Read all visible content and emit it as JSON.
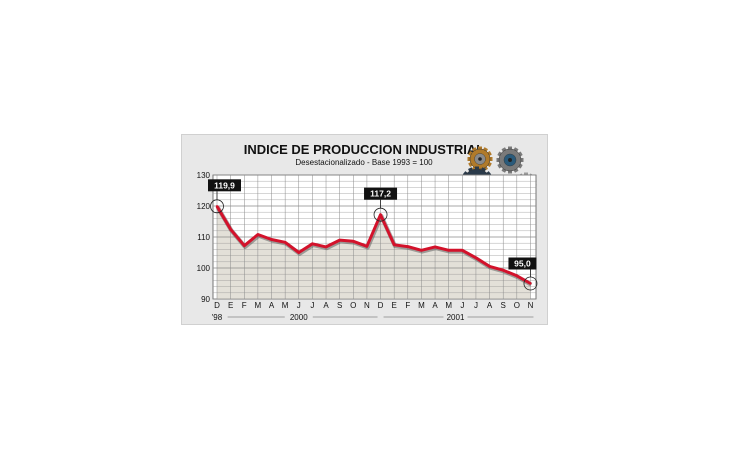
{
  "chart_data": {
    "type": "line",
    "title": "INDICE DE PRODUCCION INDUSTRIAL",
    "subtitle": "Desestacionalizado - Base 1993 = 100",
    "ylim": [
      90,
      130
    ],
    "yticks": [
      90,
      100,
      110,
      120,
      130
    ],
    "grid": true,
    "categories": [
      "D",
      "E",
      "F",
      "M",
      "A",
      "M",
      "J",
      "J",
      "A",
      "S",
      "O",
      "N",
      "D",
      "E",
      "F",
      "M",
      "A",
      "M",
      "J",
      "J",
      "A",
      "S",
      "O",
      "N"
    ],
    "year_labels": [
      "'98",
      "2000",
      "2001"
    ],
    "series": [
      {
        "values": [
          119.9,
          112.5,
          107.2,
          110.8,
          109.2,
          108.3,
          105.0,
          107.8,
          106.8,
          109.0,
          108.6,
          107.0,
          117.2,
          107.5,
          106.9,
          105.7,
          106.8,
          105.7,
          105.7,
          103.3,
          100.5,
          99.3,
          97.5,
          95.0
        ]
      }
    ],
    "annotations": [
      {
        "label": "119,9",
        "index": 0
      },
      {
        "label": "117,2",
        "index": 12
      },
      {
        "label": "95,0",
        "index": 23
      }
    ],
    "colors": {
      "line": "#d3122b",
      "line_shadow": "#555555",
      "area": "#e3e0d8",
      "grid": "#8a8a8a",
      "panel": "#e8e8e8",
      "plot": "#ffffff"
    }
  },
  "decoration": {
    "icon": "gears-icon"
  }
}
